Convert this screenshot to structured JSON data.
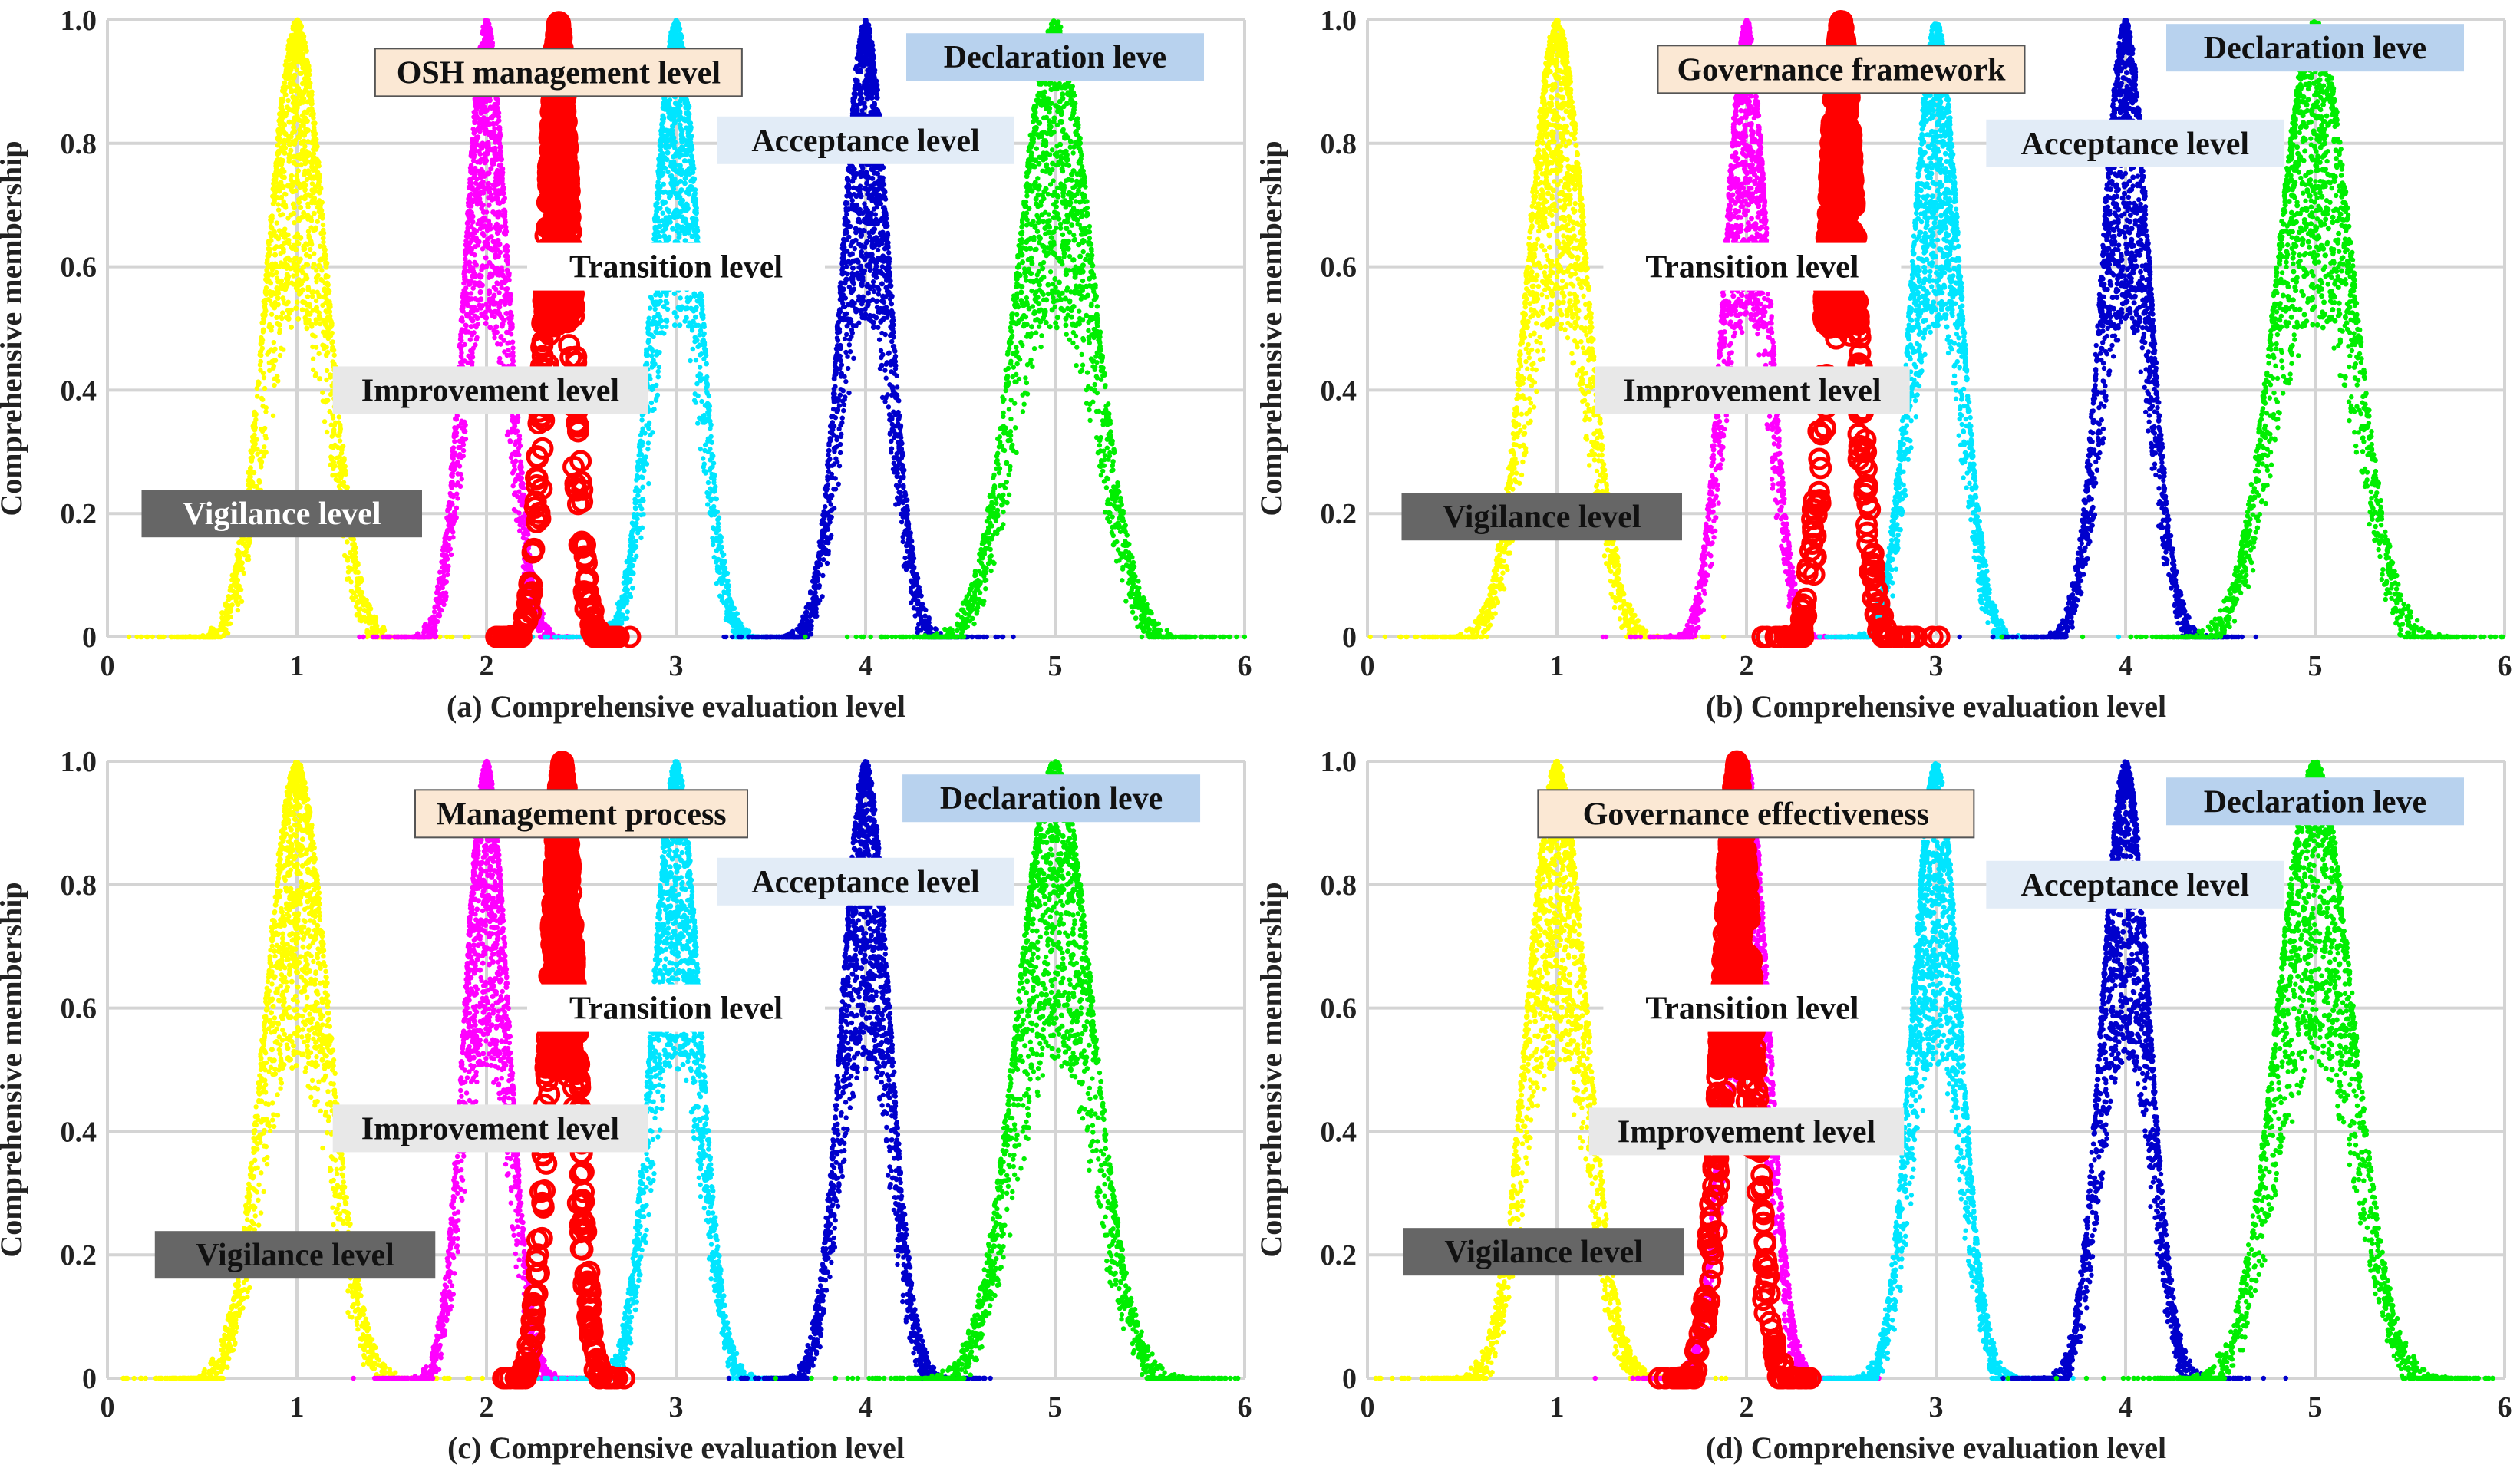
{
  "figure": {
    "panels": 4
  },
  "chart_data": [
    {
      "type": "scatter",
      "panel_caption": "(a) Comprehensive evaluation level",
      "ylabel": "Comprehensive membership",
      "xlim": [
        0,
        6
      ],
      "ylim": [
        0,
        1
      ],
      "xticks": [
        "0",
        "1",
        "2",
        "3",
        "4",
        "5",
        "6"
      ],
      "yticks": [
        "0",
        "0.2",
        "0.4",
        "0.6",
        "0.8",
        "1.0"
      ],
      "grid": true,
      "series": [
        {
          "color": "#ffff00",
          "center": 1,
          "spread": 0.75,
          "marker": "dot"
        },
        {
          "color": "#ff00ff",
          "center": 2,
          "spread": 0.55,
          "marker": "dot"
        },
        {
          "color": "#00e5ff",
          "center": 3,
          "spread": 0.6,
          "marker": "dot"
        },
        {
          "color": "#0000cc",
          "center": 4,
          "spread": 0.6,
          "marker": "dot"
        },
        {
          "color": "#00ee00",
          "center": 5,
          "spread": 0.95,
          "marker": "dot"
        },
        {
          "color": "#ff0000",
          "center": 2.38,
          "spread": 0.35,
          "marker": "circle"
        }
      ],
      "annotations": [
        {
          "text": "OSH management level",
          "x": 2.38,
          "y": 0.915,
          "box": "#fbe8d4",
          "color": "#111111"
        },
        {
          "text": "Declaration leve",
          "x": 5.0,
          "y": 0.94,
          "box": "#b8d2ee",
          "color": "#111111"
        },
        {
          "text": "Acceptance level",
          "x": 4.0,
          "y": 0.805,
          "box": "#e2ecf7",
          "color": "#111111"
        },
        {
          "text": "Transition level",
          "x": 3.0,
          "y": 0.6,
          "box": "#ffffff",
          "color": "#111111"
        },
        {
          "text": "Improvement level",
          "x": 2.02,
          "y": 0.4,
          "box": "#e8e8e8",
          "color": "#111111"
        },
        {
          "text": "Vigilance level",
          "x": 0.92,
          "y": 0.2,
          "box": "#666666",
          "color": "#ffffff"
        }
      ]
    },
    {
      "type": "scatter",
      "panel_caption": "(b) Comprehensive evaluation level",
      "ylabel": "Comprehensive membership",
      "xlim": [
        0,
        6
      ],
      "ylim": [
        0,
        1
      ],
      "xticks": [
        "0",
        "1",
        "2",
        "3",
        "4",
        "5",
        "6"
      ],
      "yticks": [
        "0",
        "0.2",
        "0.4",
        "0.6",
        "0.8",
        "1.0"
      ],
      "grid": true,
      "series": [
        {
          "color": "#ffff00",
          "center": 1,
          "spread": 0.75,
          "marker": "dot"
        },
        {
          "color": "#ff00ff",
          "center": 2,
          "spread": 0.55,
          "marker": "dot"
        },
        {
          "color": "#00e5ff",
          "center": 3,
          "spread": 0.6,
          "marker": "dot"
        },
        {
          "color": "#0000cc",
          "center": 4,
          "spread": 0.6,
          "marker": "dot"
        },
        {
          "color": "#00ee00",
          "center": 5,
          "spread": 0.95,
          "marker": "dot"
        },
        {
          "color": "#ff0000",
          "center": 2.5,
          "spread": 0.4,
          "marker": "circle"
        }
      ],
      "annotations": [
        {
          "text": "Governance framework",
          "x": 2.5,
          "y": 0.92,
          "box": "#fbe8d4",
          "color": "#111111"
        },
        {
          "text": "Declaration leve",
          "x": 5.0,
          "y": 0.955,
          "box": "#b8d2ee",
          "color": "#111111"
        },
        {
          "text": "Acceptance level",
          "x": 4.05,
          "y": 0.8,
          "box": "#e2ecf7",
          "color": "#111111"
        },
        {
          "text": "Transition level",
          "x": 2.03,
          "y": 0.6,
          "box": "#ffffff",
          "color": "#111111"
        },
        {
          "text": "Improvement level",
          "x": 2.03,
          "y": 0.4,
          "box": "#e8e8e8",
          "color": "#111111"
        },
        {
          "text": "Vigilance level",
          "x": 0.92,
          "y": 0.195,
          "box": "#666666",
          "color": "#111111"
        }
      ]
    },
    {
      "type": "scatter",
      "panel_caption": "(c) Comprehensive evaluation level",
      "ylabel": "Comprehensive membership",
      "xlim": [
        0,
        6
      ],
      "ylim": [
        0,
        1
      ],
      "xticks": [
        "0",
        "1",
        "2",
        "3",
        "4",
        "5",
        "6"
      ],
      "yticks": [
        "0",
        "0.2",
        "0.4",
        "0.6",
        "0.8",
        "1.0"
      ],
      "grid": true,
      "series": [
        {
          "color": "#ffff00",
          "center": 1,
          "spread": 0.8,
          "marker": "dot"
        },
        {
          "color": "#ff00ff",
          "center": 2,
          "spread": 0.55,
          "marker": "dot"
        },
        {
          "color": "#00e5ff",
          "center": 3,
          "spread": 0.6,
          "marker": "dot"
        },
        {
          "color": "#0000cc",
          "center": 4,
          "spread": 0.6,
          "marker": "dot"
        },
        {
          "color": "#00ee00",
          "center": 5,
          "spread": 0.95,
          "marker": "dot"
        },
        {
          "color": "#ff0000",
          "center": 2.4,
          "spread": 0.36,
          "marker": "circle"
        }
      ],
      "annotations": [
        {
          "text": "Management process",
          "x": 2.5,
          "y": 0.915,
          "box": "#fbe8d4",
          "color": "#111111"
        },
        {
          "text": "Declaration leve",
          "x": 4.98,
          "y": 0.94,
          "box": "#b8d2ee",
          "color": "#111111"
        },
        {
          "text": "Acceptance level",
          "x": 4.0,
          "y": 0.805,
          "box": "#e2ecf7",
          "color": "#111111"
        },
        {
          "text": "Transition level",
          "x": 3.0,
          "y": 0.6,
          "box": "#ffffff",
          "color": "#111111"
        },
        {
          "text": "Improvement level",
          "x": 2.02,
          "y": 0.405,
          "box": "#e8e8e8",
          "color": "#111111"
        },
        {
          "text": "Vigilance level",
          "x": 0.99,
          "y": 0.2,
          "box": "#666666",
          "color": "#111111"
        }
      ]
    },
    {
      "type": "scatter",
      "panel_caption": "(d) Comprehensive evaluation level",
      "ylabel": "Comprehensive membership",
      "xlim": [
        0,
        6
      ],
      "ylim": [
        0,
        1
      ],
      "xticks": [
        "0",
        "1",
        "2",
        "3",
        "4",
        "5",
        "6"
      ],
      "yticks": [
        "0",
        "0.2",
        "0.4",
        "0.6",
        "0.8",
        "1.0"
      ],
      "grid": true,
      "series": [
        {
          "color": "#ffff00",
          "center": 1,
          "spread": 0.75,
          "marker": "dot"
        },
        {
          "color": "#ff00ff",
          "center": 2,
          "spread": 0.55,
          "marker": "dot"
        },
        {
          "color": "#00e5ff",
          "center": 3,
          "spread": 0.6,
          "marker": "dot"
        },
        {
          "color": "#0000cc",
          "center": 4,
          "spread": 0.6,
          "marker": "dot"
        },
        {
          "color": "#00ee00",
          "center": 5,
          "spread": 0.95,
          "marker": "dot"
        },
        {
          "color": "#ff0000",
          "center": 1.95,
          "spread": 0.42,
          "marker": "circle"
        }
      ],
      "annotations": [
        {
          "text": "Governance effectiveness",
          "x": 2.05,
          "y": 0.915,
          "box": "#fbe8d4",
          "color": "#111111"
        },
        {
          "text": "Declaration leve",
          "x": 5.0,
          "y": 0.935,
          "box": "#b8d2ee",
          "color": "#111111"
        },
        {
          "text": "Acceptance level",
          "x": 4.05,
          "y": 0.8,
          "box": "#e2ecf7",
          "color": "#111111"
        },
        {
          "text": "Transition level",
          "x": 2.03,
          "y": 0.6,
          "box": "#ffffff",
          "color": "#111111"
        },
        {
          "text": "Improvement level",
          "x": 2.0,
          "y": 0.4,
          "box": "#e8e8e8",
          "color": "#111111"
        },
        {
          "text": "Vigilance level",
          "x": 0.93,
          "y": 0.205,
          "box": "#666666",
          "color": "#111111"
        }
      ]
    }
  ]
}
